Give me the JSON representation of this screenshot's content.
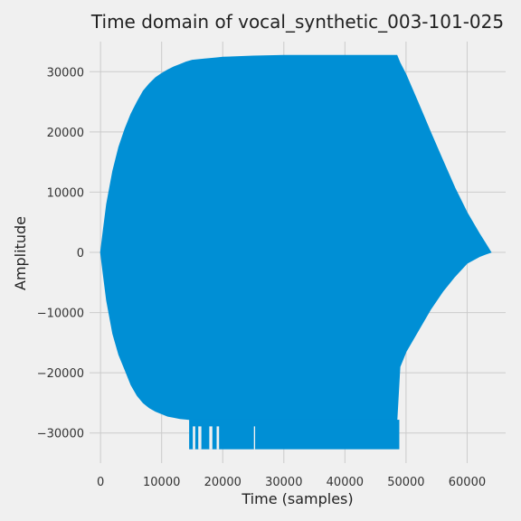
{
  "chart_data": {
    "type": "area",
    "title": "Time domain of vocal_synthetic_003-101-025",
    "xlabel": "Time (samples)",
    "ylabel": "Amplitude",
    "xlim": [
      -1800,
      66300
    ],
    "ylim": [
      -35000,
      35000
    ],
    "grid": true,
    "xticks": [
      0,
      10000,
      20000,
      30000,
      40000,
      50000,
      60000
    ],
    "yticks": [
      30000,
      20000,
      10000,
      0,
      -10000,
      -20000,
      -30000
    ],
    "xtick_labels": [
      "0",
      "10000",
      "20000",
      "30000",
      "40000",
      "50000",
      "60000"
    ],
    "ytick_labels": [
      "30000",
      "20000",
      "10000",
      "0",
      "−10000",
      "−20000",
      "−30000"
    ],
    "series": [
      {
        "color": "#008fd5",
        "x": [
          0,
          500,
          1000,
          2000,
          3000,
          4000,
          5000,
          6000,
          7000,
          8000,
          9000,
          10000,
          11000,
          12000,
          13000,
          14000,
          15000,
          17000,
          19000,
          20000,
          25000,
          30000,
          35000,
          40000,
          45000,
          48500,
          49000,
          50000,
          52000,
          54000,
          56000,
          58000,
          60000,
          62000,
          63000,
          63900
        ],
        "upper": [
          0,
          4000,
          8000,
          13500,
          17500,
          20500,
          23000,
          25000,
          26800,
          28000,
          29000,
          29700,
          30300,
          30800,
          31200,
          31600,
          31900,
          32100,
          32300,
          32400,
          32600,
          32700,
          32700,
          32700,
          32700,
          32700,
          31500,
          29500,
          24800,
          20000,
          15300,
          10700,
          6600,
          3100,
          1500,
          0
        ],
        "lower": [
          0,
          -4000,
          -8000,
          -13500,
          -17000,
          -19500,
          -22000,
          -23800,
          -25000,
          -25800,
          -26400,
          -26800,
          -27200,
          -27400,
          -27600,
          -27700,
          -27800,
          -27800,
          -27800,
          -27800,
          -27800,
          -27800,
          -27800,
          -27800,
          -27800,
          -27800,
          -19000,
          -16500,
          -13000,
          -9500,
          -6500,
          -4000,
          -1800,
          -700,
          -300,
          0
        ],
        "spike_min": -32700,
        "spike_range": [
          14500,
          48900
        ]
      }
    ]
  }
}
